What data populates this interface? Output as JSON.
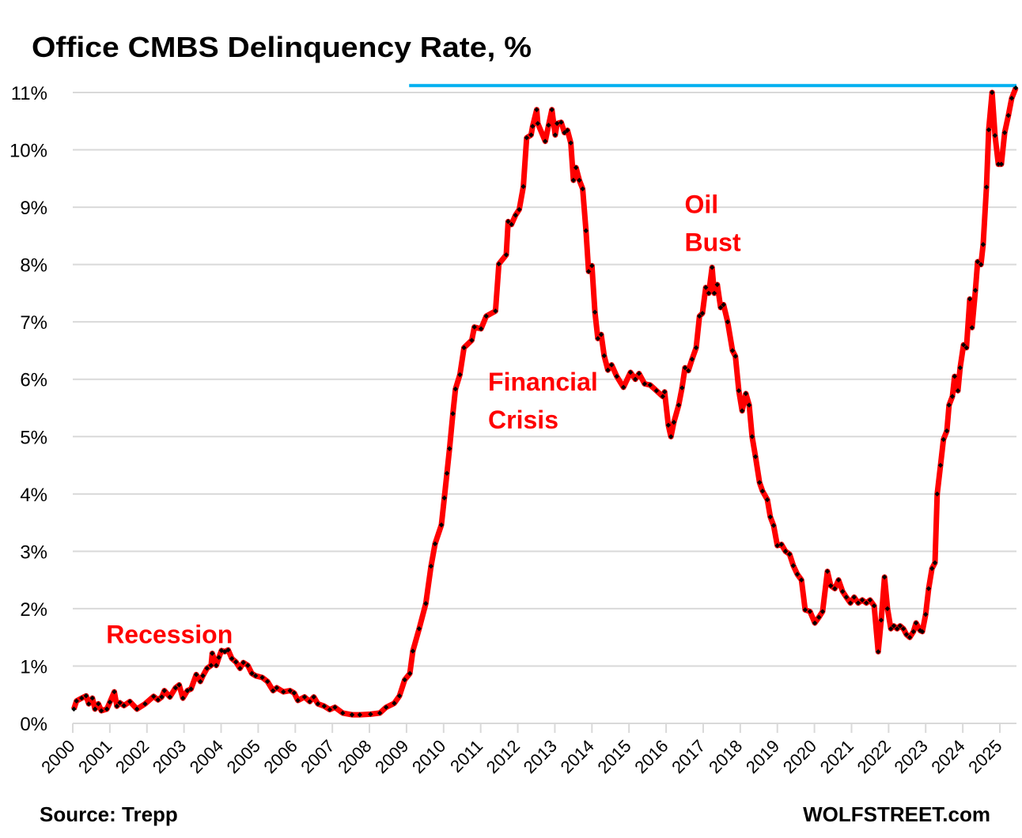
{
  "chart_data": {
    "type": "line",
    "title": "Office CMBS Delinquency Rate, %",
    "xlabel": "",
    "ylabel": "",
    "xlim": [
      2000,
      2025.5
    ],
    "ylim": [
      0,
      11
    ],
    "grid": "horizontal",
    "x_ticks": [
      "2000",
      "2001",
      "2002",
      "2003",
      "2004",
      "2005",
      "2006",
      "2007",
      "2008",
      "2009",
      "2010",
      "2011",
      "2012",
      "2013",
      "2014",
      "2015",
      "2016",
      "2017",
      "2018",
      "2019",
      "2020",
      "2021",
      "2022",
      "2023",
      "2024",
      "2025"
    ],
    "y_ticks": [
      "0%",
      "1%",
      "2%",
      "3%",
      "4%",
      "5%",
      "6%",
      "7%",
      "8%",
      "9%",
      "10%",
      "11%"
    ],
    "colors": {
      "line": "#ff0000",
      "markers": "#000000",
      "reference_line": "#00b0f0",
      "annotations": "#ff0000"
    },
    "reference_line": {
      "value": 11.08,
      "from_x": 2009.07
    },
    "annotations": [
      {
        "lines": [
          "Recession"
        ],
        "x": 2000.9,
        "y": 1.4
      },
      {
        "lines": [
          "Financial",
          "Crisis"
        ],
        "x": 2011.2,
        "y": 5.8
      },
      {
        "lines": [
          "Oil",
          "Bust"
        ],
        "x": 2016.5,
        "y": 8.9
      }
    ],
    "series": [
      {
        "x": [
          2000.03,
          2000.1,
          2000.24,
          2000.36,
          2000.43,
          2000.53,
          2000.6,
          2000.69,
          2000.77,
          2000.92,
          2001.0,
          2001.12,
          2001.19,
          2001.27,
          2001.38,
          2001.54,
          2001.73,
          2001.95,
          2002.18,
          2002.3,
          2002.4,
          2002.47,
          2002.62,
          2002.77,
          2002.87,
          2002.97,
          2003.09,
          2003.19,
          2003.33,
          2003.44,
          2003.51,
          2003.62,
          2003.73,
          2003.76,
          2003.87,
          2003.94,
          2004.01,
          2004.1,
          2004.19,
          2004.29,
          2004.4,
          2004.51,
          2004.6,
          2004.72,
          2004.83,
          2004.93,
          2005.11,
          2005.25,
          2005.4,
          2005.5,
          2005.68,
          2005.86,
          2005.97,
          2006.07,
          2006.25,
          2006.39,
          2006.5,
          2006.61,
          2006.78,
          2006.93,
          2007.07,
          2007.28,
          2007.53,
          2007.74,
          2008.03,
          2008.28,
          2008.45,
          2008.67,
          2008.81,
          2008.95,
          2009.09,
          2009.17,
          2009.34,
          2009.52,
          2009.66,
          2009.77,
          2009.94,
          2010.02,
          2010.09,
          2010.16,
          2010.25,
          2010.32,
          2010.44,
          2010.55,
          2010.76,
          2010.83,
          2011.01,
          2011.15,
          2011.4,
          2011.49,
          2011.69,
          2011.74,
          2011.83,
          2011.94,
          2012.04,
          2012.15,
          2012.24,
          2012.36,
          2012.4,
          2012.51,
          2012.54,
          2012.74,
          2012.83,
          2012.92,
          2013.01,
          2013.06,
          2013.17,
          2013.26,
          2013.34,
          2013.43,
          2013.5,
          2013.57,
          2013.66,
          2013.75,
          2013.84,
          2013.91,
          2014.0,
          2014.08,
          2014.16,
          2014.25,
          2014.33,
          2014.43,
          2014.53,
          2014.67,
          2014.85,
          2015.04,
          2015.17,
          2015.27,
          2015.42,
          2015.57,
          2015.74,
          2015.91,
          2015.96,
          2016.06,
          2016.13,
          2016.21,
          2016.34,
          2016.43,
          2016.51,
          2016.6,
          2016.7,
          2016.81,
          2016.9,
          2016.98,
          2017.07,
          2017.15,
          2017.24,
          2017.3,
          2017.38,
          2017.47,
          2017.55,
          2017.66,
          2017.79,
          2017.87,
          2017.96,
          2018.05,
          2018.15,
          2018.24,
          2018.32,
          2018.41,
          2018.52,
          2018.6,
          2018.73,
          2018.81,
          2018.9,
          2019.0,
          2019.11,
          2019.22,
          2019.33,
          2019.43,
          2019.54,
          2019.65,
          2019.75,
          2019.88,
          2020.01,
          2020.12,
          2020.22,
          2020.35,
          2020.44,
          2020.55,
          2020.65,
          2020.76,
          2020.86,
          2020.97,
          2021.07,
          2021.18,
          2021.29,
          2021.4,
          2021.5,
          2021.61,
          2021.72,
          2021.8,
          2021.89,
          2021.97,
          2022.06,
          2022.14,
          2022.23,
          2022.31,
          2022.4,
          2022.48,
          2022.57,
          2022.67,
          2022.74,
          2022.85,
          2022.91,
          2023.0,
          2023.08,
          2023.17,
          2023.25,
          2023.31,
          2023.4,
          2023.48,
          2023.57,
          2023.63,
          2023.72,
          2023.78,
          2023.87,
          2023.93,
          2024.02,
          2024.1,
          2024.19,
          2024.25,
          2024.34,
          2024.4,
          2024.49,
          2024.55,
          2024.64,
          2024.7,
          2024.79,
          2024.87,
          2024.96,
          2025.04,
          2025.13,
          2025.23,
          2025.32,
          2025.43
        ],
        "y": [
          0.25,
          0.39,
          0.44,
          0.48,
          0.34,
          0.44,
          0.25,
          0.34,
          0.22,
          0.25,
          0.37,
          0.55,
          0.3,
          0.36,
          0.31,
          0.38,
          0.25,
          0.34,
          0.47,
          0.41,
          0.46,
          0.57,
          0.46,
          0.62,
          0.67,
          0.44,
          0.57,
          0.6,
          0.85,
          0.73,
          0.83,
          0.96,
          1.01,
          1.22,
          1.01,
          1.15,
          1.27,
          1.25,
          1.28,
          1.13,
          1.07,
          0.96,
          1.06,
          1.01,
          0.87,
          0.83,
          0.8,
          0.73,
          0.57,
          0.62,
          0.55,
          0.57,
          0.53,
          0.4,
          0.46,
          0.38,
          0.46,
          0.34,
          0.3,
          0.24,
          0.28,
          0.18,
          0.15,
          0.15,
          0.16,
          0.18,
          0.28,
          0.35,
          0.48,
          0.76,
          0.87,
          1.26,
          1.65,
          2.09,
          2.74,
          3.13,
          3.46,
          3.93,
          4.36,
          4.79,
          5.4,
          5.83,
          6.08,
          6.55,
          6.68,
          6.91,
          6.88,
          7.1,
          7.19,
          8.01,
          8.17,
          8.75,
          8.7,
          8.86,
          8.96,
          9.36,
          10.21,
          10.26,
          10.41,
          10.7,
          10.46,
          10.15,
          10.43,
          10.7,
          10.26,
          10.46,
          10.48,
          10.3,
          10.34,
          10.12,
          9.47,
          9.69,
          9.47,
          9.32,
          8.59,
          7.88,
          7.98,
          7.17,
          6.71,
          6.78,
          6.41,
          6.16,
          6.25,
          6.05,
          5.86,
          6.12,
          6.0,
          6.1,
          5.92,
          5.9,
          5.8,
          5.7,
          5.78,
          5.2,
          5.0,
          5.25,
          5.55,
          5.85,
          6.2,
          6.15,
          6.35,
          6.55,
          7.1,
          7.15,
          7.6,
          7.5,
          7.95,
          7.5,
          7.65,
          7.25,
          7.3,
          7.0,
          6.5,
          6.4,
          5.8,
          5.45,
          5.75,
          5.55,
          5.0,
          4.65,
          4.2,
          4.05,
          3.9,
          3.6,
          3.45,
          3.1,
          3.12,
          3.0,
          2.95,
          2.75,
          2.6,
          2.5,
          1.98,
          1.95,
          1.75,
          1.85,
          1.95,
          2.65,
          2.4,
          2.35,
          2.5,
          2.3,
          2.2,
          2.1,
          2.2,
          2.1,
          2.15,
          2.1,
          2.15,
          2.05,
          1.25,
          1.8,
          2.55,
          2.0,
          1.65,
          1.7,
          1.65,
          1.7,
          1.65,
          1.55,
          1.5,
          1.6,
          1.75,
          1.62,
          1.6,
          1.9,
          2.35,
          2.7,
          2.8,
          4.0,
          4.5,
          4.95,
          5.1,
          5.55,
          5.7,
          6.05,
          5.8,
          6.2,
          6.6,
          6.55,
          7.4,
          6.9,
          7.55,
          8.05,
          8.0,
          8.35,
          9.35,
          10.35,
          11.0,
          10.25,
          9.75,
          9.75,
          10.3,
          10.6,
          10.9,
          11.08
        ]
      }
    ]
  },
  "footer": {
    "source": "Source: Trepp",
    "brand": "WOLFSTREET.com"
  }
}
